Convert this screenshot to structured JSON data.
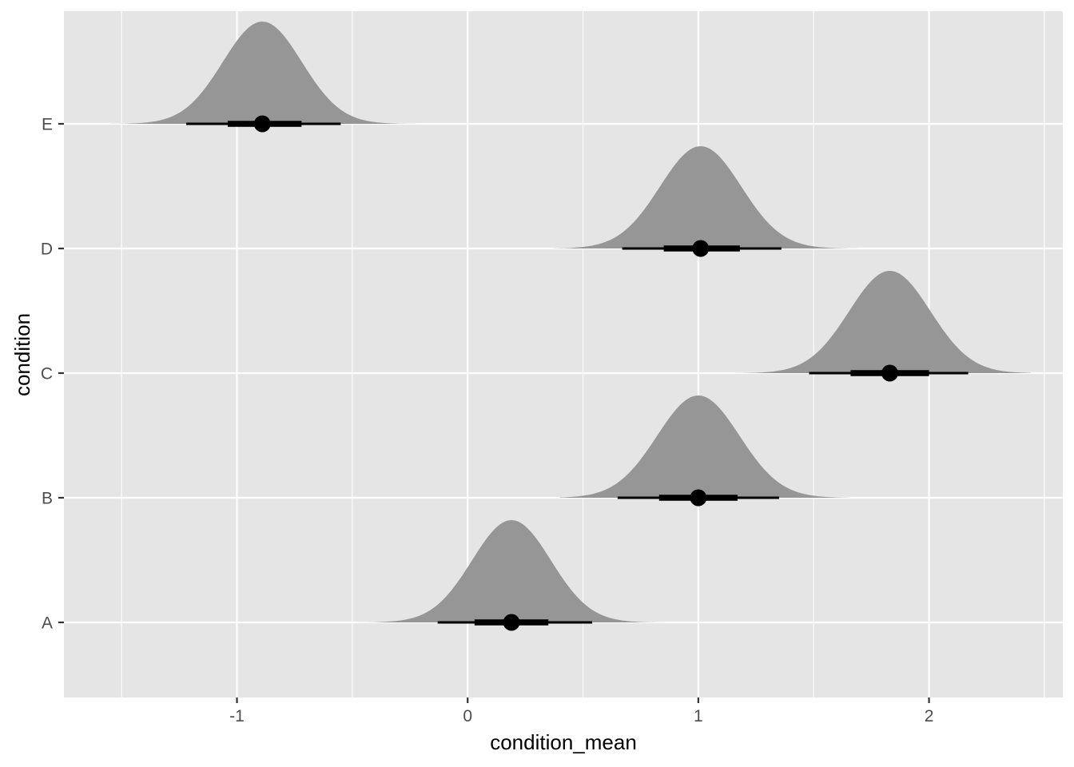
{
  "chart_data": {
    "type": "halfeye",
    "xlabel": "condition_mean",
    "ylabel": "condition",
    "xlim": [
      -1.75,
      2.58
    ],
    "x_ticks": [
      -1,
      0,
      1,
      2
    ],
    "x_tick_labels": [
      "-1",
      "0",
      "1",
      "2"
    ],
    "x_minor_ticks": [
      -1.5,
      -0.5,
      0.5,
      1.5,
      2.5
    ],
    "categories": [
      "A",
      "B",
      "C",
      "D",
      "E"
    ],
    "series": [
      {
        "category": "A",
        "median": 0.19,
        "interval_66": [
          0.03,
          0.35
        ],
        "interval_95": [
          -0.13,
          0.54
        ],
        "density_range": [
          -0.51,
          0.87
        ]
      },
      {
        "category": "B",
        "median": 1.0,
        "interval_66": [
          0.83,
          1.17
        ],
        "interval_95": [
          0.65,
          1.35
        ],
        "density_range": [
          0.4,
          1.66
        ]
      },
      {
        "category": "C",
        "median": 1.83,
        "interval_66": [
          1.66,
          2.0
        ],
        "interval_95": [
          1.48,
          2.17
        ],
        "density_range": [
          1.16,
          2.44
        ]
      },
      {
        "category": "D",
        "median": 1.01,
        "interval_66": [
          0.85,
          1.18
        ],
        "interval_95": [
          0.67,
          1.36
        ],
        "density_range": [
          0.37,
          1.72
        ]
      },
      {
        "category": "E",
        "median": -0.89,
        "interval_66": [
          -1.04,
          -0.72
        ],
        "interval_95": [
          -1.22,
          -0.55
        ],
        "density_range": [
          -1.55,
          -0.07
        ]
      }
    ],
    "grid": true,
    "legend": "none",
    "colors": {
      "panel": "#e5e5e5",
      "grid": "#ffffff",
      "density": "#969696",
      "interval": "#000000",
      "tick_text": "#4d4d4d",
      "tick_mark": "#333333"
    }
  }
}
